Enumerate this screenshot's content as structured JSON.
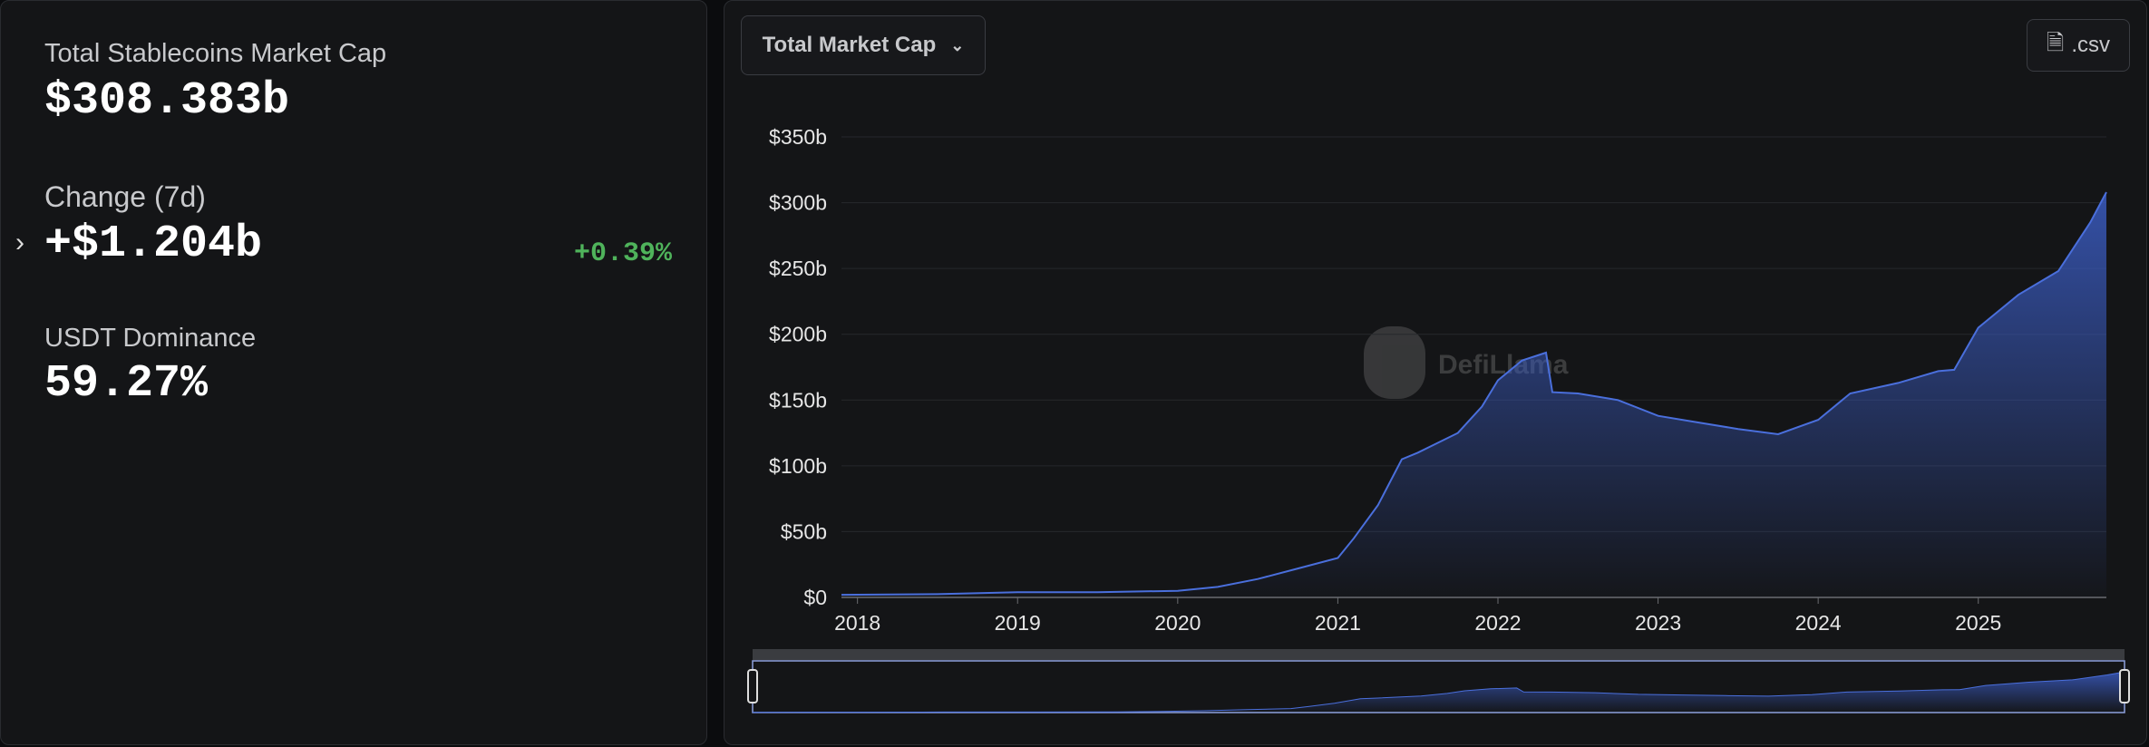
{
  "stats": {
    "market_cap_label": "Total Stablecoins Market Cap",
    "market_cap": "$308.383b",
    "change_label": "Change (7d)",
    "change": "+$1.204b",
    "change_pct": "+0.39%",
    "dominance_label": "USDT Dominance",
    "dominance": "59.27%"
  },
  "controls": {
    "metric": "Total Market Cap",
    "download": ".csv"
  },
  "watermark": "DefiLlama",
  "chart_data": {
    "type": "area",
    "x": [
      2017.9,
      2018.5,
      2019.0,
      2019.5,
      2020.0,
      2020.25,
      2020.5,
      2020.75,
      2021.0,
      2021.1,
      2021.25,
      2021.4,
      2021.5,
      2021.75,
      2021.9,
      2022.0,
      2022.15,
      2022.3,
      2022.34,
      2022.5,
      2022.75,
      2023.0,
      2023.25,
      2023.5,
      2023.75,
      2024.0,
      2024.2,
      2024.5,
      2024.75,
      2024.85,
      2025.0,
      2025.25,
      2025.5,
      2025.7,
      2025.8
    ],
    "series": [
      {
        "name": "Total Market Cap",
        "color": "#4a6fdc",
        "values": [
          2,
          2.5,
          4,
          4,
          5,
          8,
          14,
          22,
          30,
          45,
          70,
          105,
          110,
          125,
          145,
          165,
          180,
          186,
          156,
          155,
          150,
          138,
          133,
          128,
          124,
          135,
          155,
          163,
          172,
          173,
          205,
          230,
          248,
          285,
          308
        ]
      }
    ],
    "xlim": [
      2017.9,
      2025.8
    ],
    "xticks": [
      2018,
      2019,
      2020,
      2021,
      2022,
      2023,
      2024,
      2025
    ],
    "ylim": [
      0,
      350
    ],
    "yticks": [
      {
        "value": 0,
        "label": "$0"
      },
      {
        "value": 50,
        "label": "$50b"
      },
      {
        "value": 100,
        "label": "$100b"
      },
      {
        "value": 150,
        "label": "$150b"
      },
      {
        "value": 200,
        "label": "$200b"
      },
      {
        "value": 250,
        "label": "$250b"
      },
      {
        "value": 300,
        "label": "$300b"
      },
      {
        "value": 350,
        "label": "$350b"
      }
    ],
    "grid": true
  }
}
